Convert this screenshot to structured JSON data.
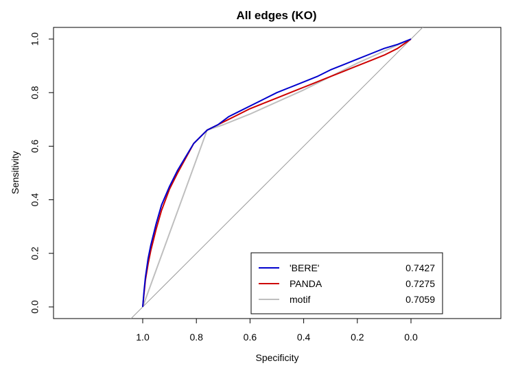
{
  "chart_data": {
    "type": "line",
    "title": "All edges (KO)",
    "xlabel": "Specificity",
    "ylabel": "Sensitivity",
    "xlim": [
      1.2,
      -0.2
    ],
    "ylim": [
      0.0,
      1.0
    ],
    "x_ticks": [
      "1.0",
      "0.8",
      "0.6",
      "0.4",
      "0.2",
      "0.0"
    ],
    "y_ticks": [
      "0.0",
      "0.2",
      "0.4",
      "0.6",
      "0.8",
      "1.0"
    ],
    "x_axis_reversed": true,
    "diagonal_reference": true,
    "grid": false,
    "legend_position": "bottom-right",
    "series": [
      {
        "name": "'BERE'",
        "auc": "0.7427",
        "color": "#0000cd",
        "points": [
          {
            "x": 1.0,
            "y": 0.0
          },
          {
            "x": 0.995,
            "y": 0.06
          },
          {
            "x": 0.99,
            "y": 0.11
          },
          {
            "x": 0.98,
            "y": 0.18
          },
          {
            "x": 0.97,
            "y": 0.23
          },
          {
            "x": 0.95,
            "y": 0.31
          },
          {
            "x": 0.93,
            "y": 0.38
          },
          {
            "x": 0.9,
            "y": 0.45
          },
          {
            "x": 0.87,
            "y": 0.51
          },
          {
            "x": 0.84,
            "y": 0.56
          },
          {
            "x": 0.81,
            "y": 0.61
          },
          {
            "x": 0.76,
            "y": 0.66
          },
          {
            "x": 0.72,
            "y": 0.68
          },
          {
            "x": 0.68,
            "y": 0.71
          },
          {
            "x": 0.64,
            "y": 0.73
          },
          {
            "x": 0.6,
            "y": 0.75
          },
          {
            "x": 0.55,
            "y": 0.775
          },
          {
            "x": 0.5,
            "y": 0.8
          },
          {
            "x": 0.45,
            "y": 0.82
          },
          {
            "x": 0.4,
            "y": 0.84
          },
          {
            "x": 0.35,
            "y": 0.86
          },
          {
            "x": 0.3,
            "y": 0.885
          },
          {
            "x": 0.25,
            "y": 0.905
          },
          {
            "x": 0.2,
            "y": 0.925
          },
          {
            "x": 0.15,
            "y": 0.945
          },
          {
            "x": 0.1,
            "y": 0.965
          },
          {
            "x": 0.05,
            "y": 0.98
          },
          {
            "x": 0.0,
            "y": 1.0
          }
        ]
      },
      {
        "name": "PANDA",
        "auc": "0.7275",
        "color": "#cd0000",
        "points": [
          {
            "x": 1.0,
            "y": 0.0
          },
          {
            "x": 0.995,
            "y": 0.05
          },
          {
            "x": 0.99,
            "y": 0.1
          },
          {
            "x": 0.98,
            "y": 0.16
          },
          {
            "x": 0.97,
            "y": 0.21
          },
          {
            "x": 0.95,
            "y": 0.29
          },
          {
            "x": 0.93,
            "y": 0.36
          },
          {
            "x": 0.9,
            "y": 0.44
          },
          {
            "x": 0.87,
            "y": 0.5
          },
          {
            "x": 0.84,
            "y": 0.555
          },
          {
            "x": 0.81,
            "y": 0.61
          },
          {
            "x": 0.76,
            "y": 0.66
          },
          {
            "x": 0.72,
            "y": 0.68
          },
          {
            "x": 0.68,
            "y": 0.7
          },
          {
            "x": 0.64,
            "y": 0.72
          },
          {
            "x": 0.6,
            "y": 0.74
          },
          {
            "x": 0.55,
            "y": 0.76
          },
          {
            "x": 0.5,
            "y": 0.78
          },
          {
            "x": 0.45,
            "y": 0.8
          },
          {
            "x": 0.4,
            "y": 0.82
          },
          {
            "x": 0.35,
            "y": 0.84
          },
          {
            "x": 0.3,
            "y": 0.86
          },
          {
            "x": 0.25,
            "y": 0.88
          },
          {
            "x": 0.2,
            "y": 0.9
          },
          {
            "x": 0.15,
            "y": 0.92
          },
          {
            "x": 0.1,
            "y": 0.94
          },
          {
            "x": 0.05,
            "y": 0.965
          },
          {
            "x": 0.0,
            "y": 1.0
          }
        ]
      },
      {
        "name": "motif",
        "auc": "0.7059",
        "color": "#bebebe",
        "points": [
          {
            "x": 1.0,
            "y": 0.0
          },
          {
            "x": 0.76,
            "y": 0.66
          },
          {
            "x": 0.7,
            "y": 0.68
          },
          {
            "x": 0.6,
            "y": 0.72
          },
          {
            "x": 0.5,
            "y": 0.765
          },
          {
            "x": 0.4,
            "y": 0.81
          },
          {
            "x": 0.3,
            "y": 0.86
          },
          {
            "x": 0.2,
            "y": 0.91
          },
          {
            "x": 0.1,
            "y": 0.955
          },
          {
            "x": 0.0,
            "y": 1.0
          }
        ]
      }
    ]
  }
}
